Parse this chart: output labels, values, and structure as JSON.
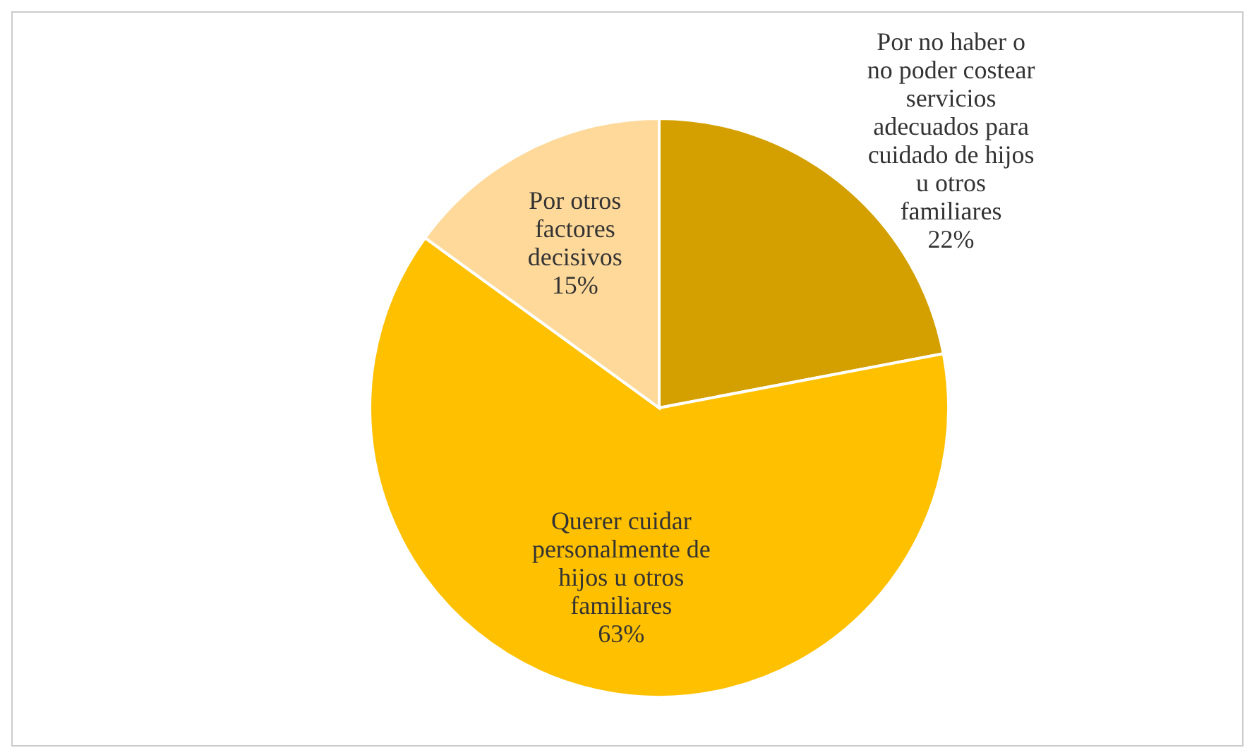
{
  "chart_data": {
    "type": "pie",
    "categories": [
      "Por no haber o no poder costear servicios adecuados para cuidado de hijos u otros familiares",
      "Querer cuidar personalmente de hijos u otros familiares",
      "Por otros factores decisivos"
    ],
    "values": [
      22,
      63,
      15
    ],
    "value_labels": [
      "22%",
      "63%",
      "15%"
    ],
    "colors": [
      "#d4a000",
      "#ffc000",
      "#ffd99a"
    ]
  }
}
